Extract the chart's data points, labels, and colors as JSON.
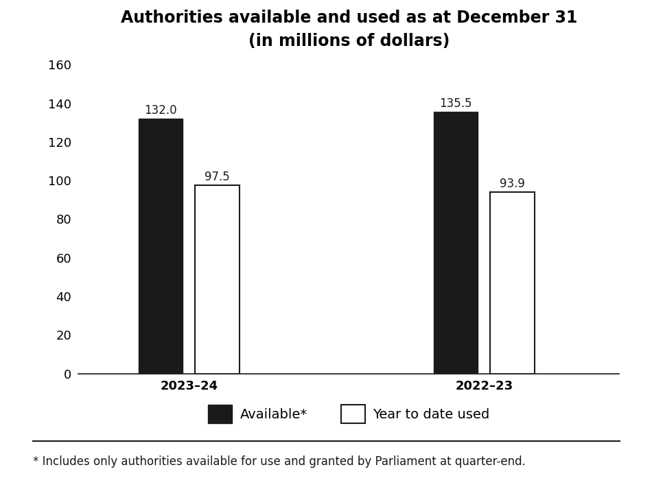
{
  "title_line1": "Authorities available and used as at December 31",
  "title_line2": "(in millions of dollars)",
  "categories": [
    "2023–24",
    "2022–23"
  ],
  "available": [
    132.0,
    135.5
  ],
  "used": [
    97.5,
    93.9
  ],
  "available_color": "#1a1a1a",
  "used_color": "#ffffff",
  "used_edgecolor": "#1a1a1a",
  "ylim": [
    0,
    160
  ],
  "yticks": [
    0,
    20,
    40,
    60,
    80,
    100,
    120,
    140,
    160
  ],
  "bar_width": 0.18,
  "group_centers": [
    1.0,
    2.2
  ],
  "bar_gap": 0.05,
  "legend_available": "Available*",
  "legend_used": "Year to date used",
  "footnote": "* Includes only authorities available for use and granted by Parliament at quarter-end.",
  "title_fontsize": 17,
  "tick_fontsize": 13,
  "legend_fontsize": 14,
  "footnote_fontsize": 12,
  "annotation_fontsize": 12
}
